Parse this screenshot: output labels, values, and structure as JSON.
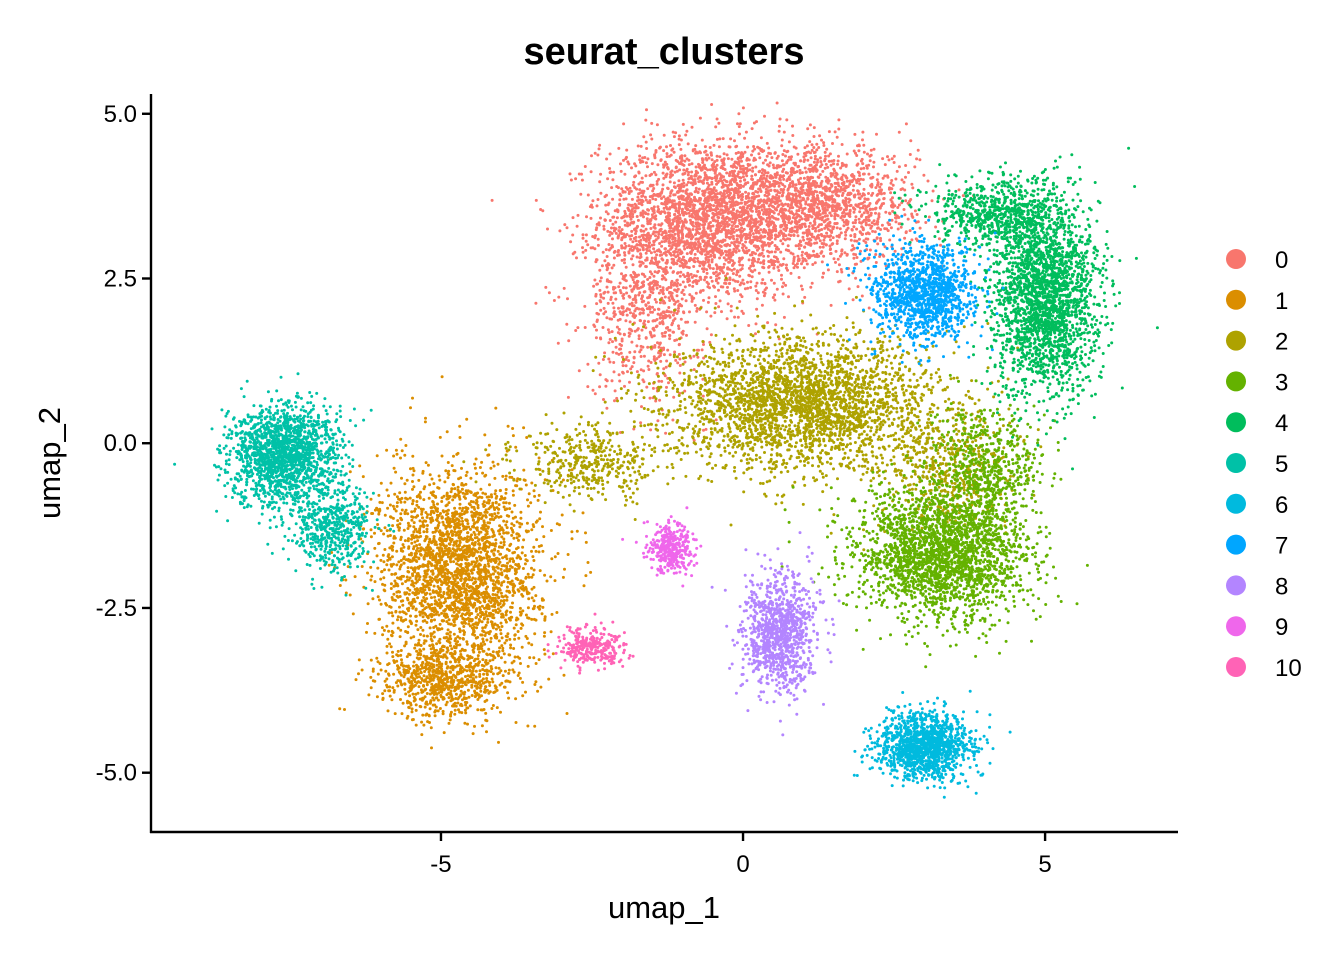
{
  "chart_data": {
    "type": "scatter",
    "title": "seurat_clusters",
    "xlabel": "umap_1",
    "ylabel": "umap_2",
    "xlim": [
      -9.8,
      7.2
    ],
    "ylim": [
      -5.9,
      5.3
    ],
    "x_ticks": [
      {
        "value": -5,
        "label": "-5"
      },
      {
        "value": 0,
        "label": "0"
      },
      {
        "value": 5,
        "label": "5"
      }
    ],
    "y_ticks": [
      {
        "value": 5.0,
        "label": "5.0"
      },
      {
        "value": 2.5,
        "label": "2.5"
      },
      {
        "value": 0.0,
        "label": "0.0"
      },
      {
        "value": -2.5,
        "label": "-2.5"
      },
      {
        "value": -5.0,
        "label": "-5.0"
      }
    ],
    "legend_position": "right",
    "grid": false,
    "series": [
      {
        "name": "0",
        "color": "#F8766D",
        "regions": [
          {
            "cx": -0.6,
            "cy": 3.4,
            "sx": 1.6,
            "sy": 1.1,
            "n": 2600
          },
          {
            "cx": 1.3,
            "cy": 3.6,
            "sx": 1.4,
            "sy": 0.8,
            "n": 1400
          },
          {
            "cx": -1.6,
            "cy": 2.0,
            "sx": 0.9,
            "sy": 1.2,
            "n": 600
          }
        ]
      },
      {
        "name": "1",
        "color": "#DB8E00",
        "regions": [
          {
            "cx": -4.7,
            "cy": -1.9,
            "sx": 1.2,
            "sy": 1.4,
            "n": 2600
          },
          {
            "cx": -4.9,
            "cy": -3.6,
            "sx": 1.0,
            "sy": 0.5,
            "n": 700
          }
        ]
      },
      {
        "name": "2",
        "color": "#AEA200",
        "regions": [
          {
            "cx": 1.0,
            "cy": 0.6,
            "sx": 2.0,
            "sy": 0.9,
            "n": 2800
          },
          {
            "cx": -2.5,
            "cy": -0.3,
            "sx": 1.1,
            "sy": 0.5,
            "n": 400
          },
          {
            "cx": 3.4,
            "cy": -0.4,
            "sx": 1.0,
            "sy": 0.8,
            "n": 500
          }
        ]
      },
      {
        "name": "3",
        "color": "#64B200",
        "regions": [
          {
            "cx": 3.3,
            "cy": -1.7,
            "sx": 1.3,
            "sy": 0.9,
            "n": 2300
          },
          {
            "cx": 4.0,
            "cy": -0.4,
            "sx": 0.8,
            "sy": 0.8,
            "n": 600
          }
        ]
      },
      {
        "name": "4",
        "color": "#00BD5C",
        "regions": [
          {
            "cx": 5.0,
            "cy": 2.2,
            "sx": 0.8,
            "sy": 1.3,
            "n": 2200
          },
          {
            "cx": 4.2,
            "cy": 3.5,
            "sx": 1.0,
            "sy": 0.5,
            "n": 700
          }
        ]
      },
      {
        "name": "5",
        "color": "#00C1A7",
        "regions": [
          {
            "cx": -7.6,
            "cy": -0.2,
            "sx": 0.8,
            "sy": 0.7,
            "n": 1700
          },
          {
            "cx": -6.8,
            "cy": -1.3,
            "sx": 0.6,
            "sy": 0.6,
            "n": 500
          }
        ]
      },
      {
        "name": "6",
        "color": "#00BADE",
        "regions": [
          {
            "cx": 3.0,
            "cy": -4.6,
            "sx": 0.7,
            "sy": 0.45,
            "n": 1300
          }
        ]
      },
      {
        "name": "7",
        "color": "#00A6FF",
        "regions": [
          {
            "cx": 3.0,
            "cy": 2.3,
            "sx": 0.75,
            "sy": 0.65,
            "n": 1200
          }
        ]
      },
      {
        "name": "8",
        "color": "#B385FF",
        "regions": [
          {
            "cx": 0.6,
            "cy": -2.9,
            "sx": 0.55,
            "sy": 0.8,
            "n": 1000
          }
        ]
      },
      {
        "name": "9",
        "color": "#EF67EB",
        "regions": [
          {
            "cx": -1.2,
            "cy": -1.6,
            "sx": 0.35,
            "sy": 0.35,
            "n": 350
          }
        ]
      },
      {
        "name": "10",
        "color": "#FF63B6",
        "regions": [
          {
            "cx": -2.5,
            "cy": -3.1,
            "sx": 0.45,
            "sy": 0.3,
            "n": 300
          }
        ]
      }
    ]
  }
}
